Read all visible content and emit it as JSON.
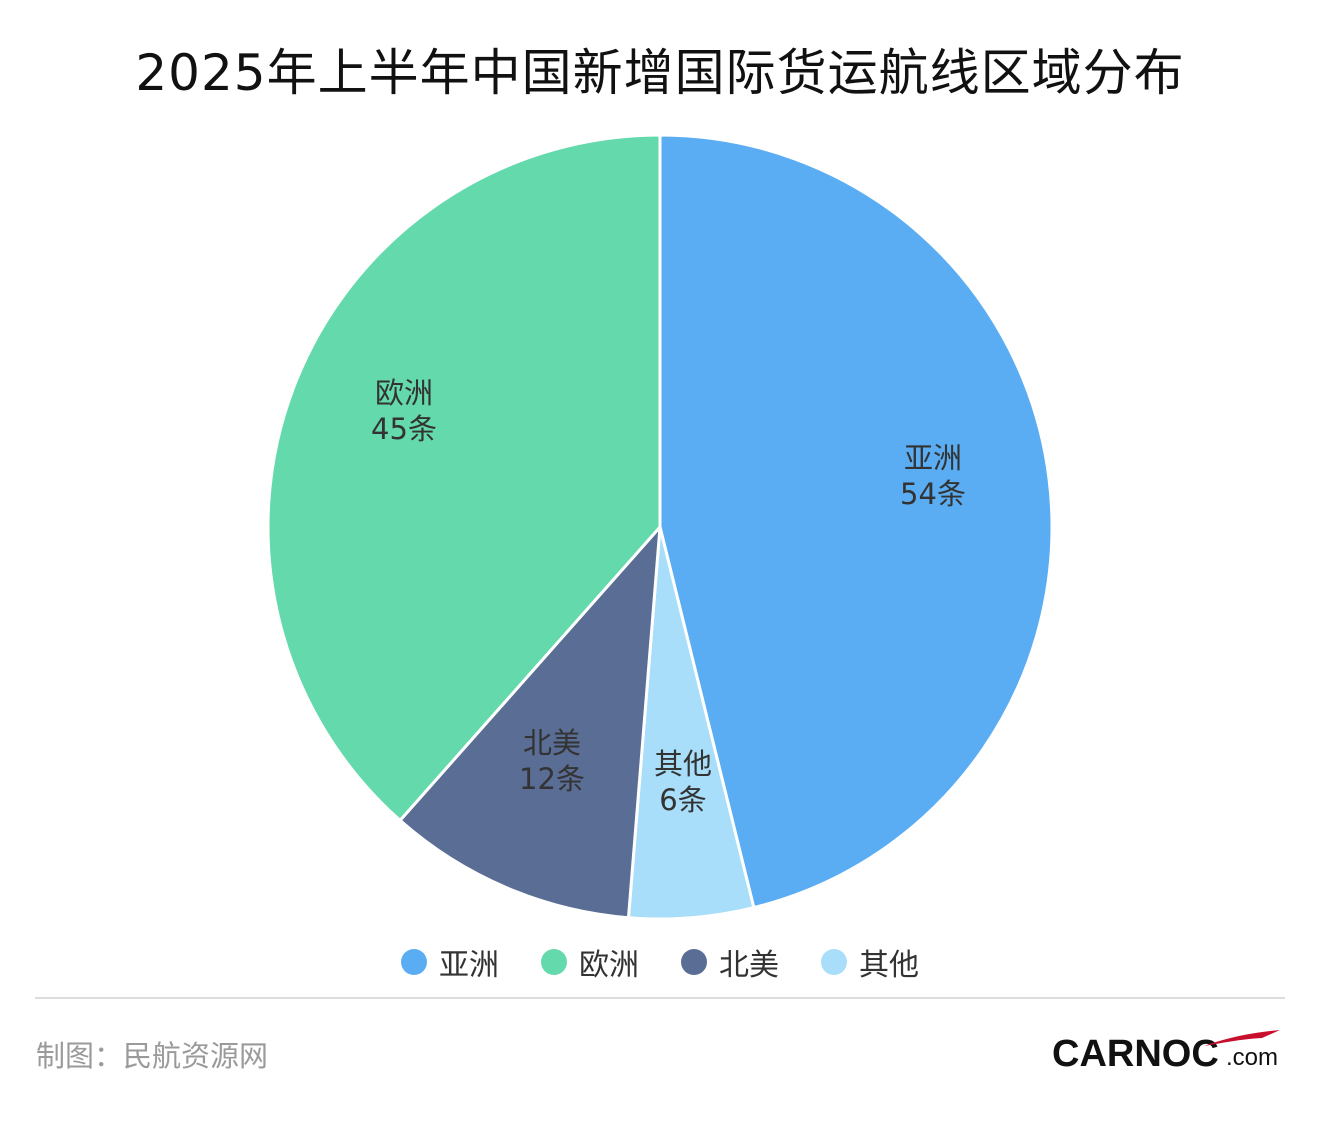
{
  "chart_data": {
    "type": "pie",
    "title": "2025年上半年中国新增国际货运航线区域分布",
    "unit": "条",
    "start_angle_deg": 0,
    "direction": "clockwise",
    "slices": [
      {
        "name": "亚洲",
        "value": 54,
        "label": "54条",
        "color": "#5aadf3"
      },
      {
        "name": "其他",
        "value": 6,
        "label": "6条",
        "color": "#a8def9"
      },
      {
        "name": "北美",
        "value": 12,
        "label": "12条",
        "color": "#5a6d94"
      },
      {
        "name": "欧洲",
        "value": 45,
        "label": "45条",
        "color": "#64d9ac"
      }
    ],
    "legend": {
      "placement": "bottom",
      "items": [
        {
          "name": "亚洲",
          "color": "#5aadf3"
        },
        {
          "name": "欧洲",
          "color": "#64d9ac"
        },
        {
          "name": "北美",
          "color": "#5a6d94"
        },
        {
          "name": "其他",
          "color": "#a8def9"
        }
      ]
    }
  },
  "footer": {
    "credit": "制图：民航资源网",
    "logo_text": "CARNOC",
    "logo_suffix": ".com"
  }
}
